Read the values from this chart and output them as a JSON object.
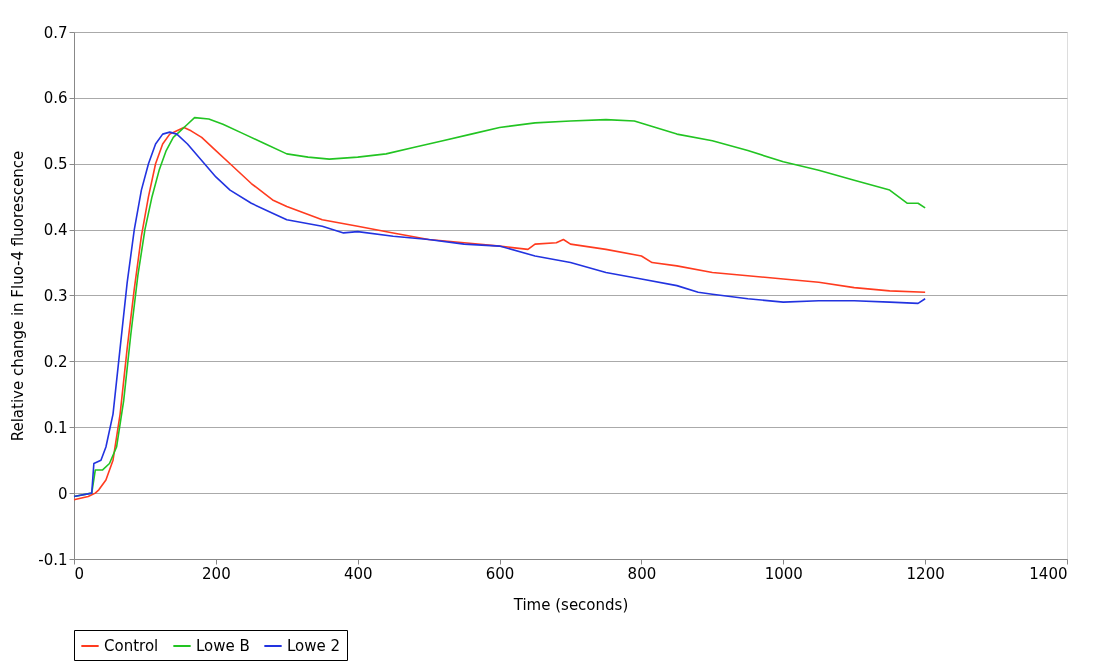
{
  "chart_data": {
    "type": "line",
    "xlabel": "Time (seconds)",
    "ylabel": "Relative change in Fluo-4 fluorescence",
    "xlim": [
      0,
      1400
    ],
    "xticks": [
      0,
      200,
      400,
      600,
      800,
      1000,
      1200,
      1400
    ],
    "ylim": [
      -0.1,
      0.7
    ],
    "yticks": [
      -0.1,
      0,
      0.1,
      0.2,
      0.3,
      0.4,
      0.5,
      0.6,
      0.7
    ],
    "grid": "y",
    "legend": "bottom",
    "marker": "none",
    "line_style": "solid",
    "series": [
      {
        "name": "Control",
        "color": "#ff3b1f",
        "x": [
          0,
          20,
          30,
          35,
          45,
          55,
          65,
          75,
          85,
          95,
          105,
          115,
          125,
          135,
          145,
          155,
          165,
          180,
          200,
          220,
          250,
          280,
          300,
          350,
          400,
          450,
          500,
          550,
          600,
          640,
          650,
          680,
          690,
          700,
          750,
          800,
          815,
          850,
          900,
          950,
          1000,
          1050,
          1100,
          1150,
          1200
        ],
        "values": [
          -0.01,
          -0.005,
          0.0,
          0.005,
          0.02,
          0.05,
          0.12,
          0.22,
          0.31,
          0.39,
          0.45,
          0.5,
          0.53,
          0.545,
          0.55,
          0.555,
          0.55,
          0.54,
          0.52,
          0.5,
          0.47,
          0.445,
          0.435,
          0.415,
          0.405,
          0.395,
          0.385,
          0.38,
          0.375,
          0.37,
          0.378,
          0.38,
          0.385,
          0.378,
          0.37,
          0.36,
          0.35,
          0.345,
          0.335,
          0.33,
          0.325,
          0.32,
          0.312,
          0.307,
          0.305
        ]
      },
      {
        "name": "Lowe B",
        "color": "#22c422",
        "x": [
          0,
          25,
          30,
          40,
          50,
          60,
          70,
          80,
          90,
          100,
          110,
          120,
          130,
          140,
          150,
          160,
          170,
          190,
          210,
          240,
          270,
          300,
          330,
          360,
          400,
          440,
          480,
          520,
          560,
          600,
          650,
          700,
          750,
          790,
          820,
          850,
          900,
          950,
          1000,
          1050,
          1100,
          1150,
          1175,
          1190,
          1200
        ],
        "values": [
          -0.005,
          0.0,
          0.035,
          0.035,
          0.045,
          0.07,
          0.14,
          0.24,
          0.33,
          0.4,
          0.45,
          0.49,
          0.52,
          0.54,
          0.55,
          0.56,
          0.57,
          0.568,
          0.56,
          0.545,
          0.53,
          0.515,
          0.51,
          0.507,
          0.51,
          0.515,
          0.525,
          0.535,
          0.545,
          0.555,
          0.562,
          0.565,
          0.567,
          0.565,
          0.555,
          0.545,
          0.535,
          0.52,
          0.503,
          0.49,
          0.475,
          0.46,
          0.44,
          0.44,
          0.433
        ]
      },
      {
        "name": "Lowe 2",
        "color": "#2233e0",
        "x": [
          0,
          25,
          28,
          38,
          45,
          55,
          65,
          75,
          85,
          95,
          105,
          115,
          125,
          135,
          145,
          160,
          180,
          200,
          220,
          250,
          280,
          300,
          350,
          380,
          400,
          450,
          500,
          550,
          600,
          650,
          700,
          750,
          800,
          850,
          880,
          900,
          950,
          1000,
          1050,
          1100,
          1150,
          1190,
          1200
        ],
        "values": [
          -0.005,
          0.0,
          0.045,
          0.05,
          0.07,
          0.12,
          0.22,
          0.32,
          0.4,
          0.46,
          0.5,
          0.53,
          0.545,
          0.548,
          0.545,
          0.53,
          0.505,
          0.48,
          0.46,
          0.44,
          0.425,
          0.415,
          0.405,
          0.395,
          0.397,
          0.39,
          0.385,
          0.378,
          0.375,
          0.36,
          0.35,
          0.335,
          0.325,
          0.315,
          0.305,
          0.302,
          0.295,
          0.29,
          0.292,
          0.292,
          0.29,
          0.288,
          0.295
        ]
      }
    ]
  }
}
